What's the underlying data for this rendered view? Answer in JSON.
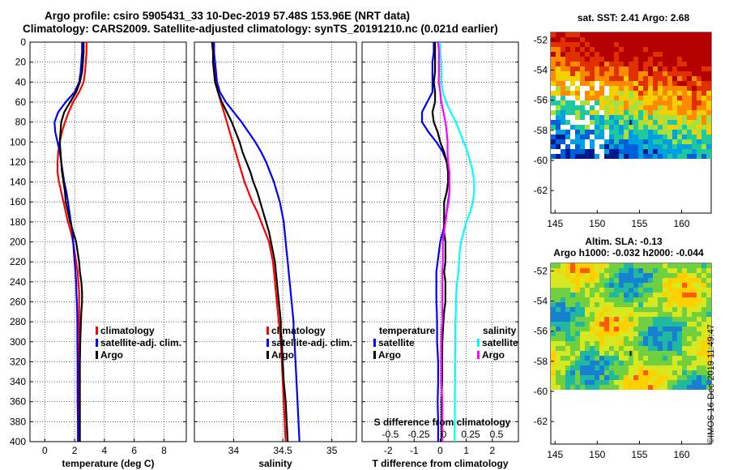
{
  "titles": {
    "line1": "Argo profile: csiro 5905431_33 10-Dec-2019 57.48S 153.96E (NRT data)",
    "line2": "Climatology: CARS2009. Satellite-adjusted climatology: synTS_20191210.nc (0.021d earlier)"
  },
  "credit": "©IMOS 16-Dec-2019 11:49:47",
  "depth_ticks": [
    "0",
    "20",
    "40",
    "60",
    "80",
    "100",
    "120",
    "140",
    "160",
    "180",
    "200",
    "220",
    "240",
    "260",
    "280",
    "300",
    "320",
    "340",
    "360",
    "380",
    "400"
  ],
  "chart_data": [
    {
      "type": "line",
      "name": "temperature",
      "xlabel": "temperature (deg C)",
      "xlim": [
        -1,
        9.5
      ],
      "ylim": [
        400,
        0
      ],
      "xticks": [
        "0",
        "2",
        "4",
        "6",
        "8"
      ],
      "xtick_values": [
        0,
        2,
        4,
        6,
        8
      ],
      "grid": true,
      "depth": [
        0,
        10,
        20,
        30,
        40,
        50,
        60,
        70,
        80,
        90,
        100,
        110,
        120,
        130,
        140,
        150,
        160,
        170,
        180,
        190,
        200,
        210,
        220,
        230,
        240,
        250,
        260,
        270,
        280,
        290,
        300,
        320,
        340,
        360,
        380,
        400
      ],
      "series": [
        {
          "name": "climatology",
          "color": "#ff0000",
          "values": [
            2.8,
            2.8,
            2.75,
            2.7,
            2.6,
            2.3,
            1.9,
            1.6,
            1.35,
            1.15,
            1.0,
            0.9,
            0.85,
            0.85,
            0.95,
            1.1,
            1.25,
            1.4,
            1.55,
            1.75,
            1.9,
            2.0,
            2.1,
            2.2,
            2.25,
            2.3,
            2.3,
            2.3,
            2.3,
            2.3,
            2.3,
            2.28,
            2.28,
            2.3,
            2.3,
            2.3
          ]
        },
        {
          "name": "satellite-adj. clim.",
          "color": "#0000ff",
          "values": [
            2.5,
            2.5,
            2.45,
            2.4,
            2.3,
            2.0,
            1.4,
            0.9,
            0.65,
            0.7,
            0.85,
            1.0,
            1.1,
            1.2,
            1.3,
            1.45,
            1.55,
            1.65,
            1.75,
            1.85,
            1.9,
            1.95,
            2.0,
            2.05,
            2.1,
            2.12,
            2.15,
            2.17,
            2.18,
            2.18,
            2.18,
            2.2,
            2.2,
            2.2,
            2.22,
            2.22
          ]
        },
        {
          "name": "Argo",
          "color": "#000000",
          "values": [
            2.6,
            2.6,
            2.55,
            2.5,
            2.35,
            2.1,
            1.7,
            1.3,
            1.1,
            1.05,
            1.0,
            1.05,
            1.1,
            1.15,
            1.25,
            1.35,
            1.4,
            1.55,
            1.7,
            1.9,
            2.1,
            2.2,
            2.3,
            2.35,
            2.45,
            2.5,
            2.5,
            2.45,
            2.42,
            2.4,
            2.38,
            2.35,
            2.35,
            2.35,
            2.35,
            2.35
          ]
        }
      ],
      "legend": {
        "position": "right-middle",
        "entries": [
          "climatology",
          "satellite-adj. clim.",
          "Argo"
        ]
      }
    },
    {
      "type": "line",
      "name": "salinity",
      "xlabel": "salinity",
      "xlim": [
        33.6,
        35.25
      ],
      "ylim": [
        400,
        0
      ],
      "xticks": [
        "34",
        "34.5",
        "35"
      ],
      "xtick_values": [
        34,
        34.5,
        35
      ],
      "grid": true,
      "depth": [
        0,
        10,
        20,
        30,
        40,
        50,
        60,
        70,
        80,
        90,
        100,
        110,
        120,
        130,
        140,
        150,
        160,
        170,
        180,
        190,
        200,
        210,
        220,
        230,
        240,
        250,
        260,
        270,
        280,
        290,
        300,
        320,
        340,
        360,
        380,
        400
      ],
      "series": [
        {
          "name": "climatology",
          "color": "#ff0000",
          "values": [
            33.8,
            33.8,
            33.8,
            33.81,
            33.82,
            33.84,
            33.87,
            33.9,
            33.93,
            33.96,
            33.99,
            34.02,
            34.05,
            34.08,
            34.11,
            34.15,
            34.19,
            34.24,
            34.28,
            34.32,
            34.36,
            34.38,
            34.4,
            34.41,
            34.42,
            34.43,
            34.44,
            34.45,
            34.46,
            34.47,
            34.48,
            34.49,
            34.5,
            34.51,
            34.52,
            34.53
          ]
        },
        {
          "name": "satellite-adj. clim.",
          "color": "#0000ff",
          "values": [
            33.8,
            33.8,
            33.81,
            33.82,
            33.83,
            33.86,
            33.92,
            34.0,
            34.08,
            34.15,
            34.22,
            34.28,
            34.33,
            34.37,
            34.41,
            34.44,
            34.47,
            34.49,
            34.51,
            34.52,
            34.53,
            34.54,
            34.55,
            34.56,
            34.57,
            34.58,
            34.59,
            34.6,
            34.61,
            34.61,
            34.62,
            34.63,
            34.64,
            34.65,
            34.66,
            34.67
          ]
        },
        {
          "name": "Argo",
          "color": "#000000",
          "values": [
            33.78,
            33.79,
            33.79,
            33.8,
            33.81,
            33.84,
            33.88,
            33.93,
            33.98,
            34.02,
            34.06,
            34.09,
            34.13,
            34.17,
            34.2,
            34.24,
            34.27,
            34.3,
            34.33,
            34.36,
            34.38,
            34.4,
            34.42,
            34.43,
            34.44,
            34.45,
            34.46,
            34.47,
            34.48,
            34.48,
            34.49,
            34.5,
            34.51,
            34.53,
            34.54,
            34.55
          ]
        }
      ],
      "legend": {
        "position": "right-middle",
        "entries": [
          "climatology",
          "satellite-adj. clim.",
          "Argo"
        ]
      }
    },
    {
      "type": "line",
      "name": "differences",
      "xlabel": "T difference from climatology",
      "xlim": [
        -3,
        3
      ],
      "ylim": [
        400,
        0
      ],
      "xticks": [
        "-2",
        "-1",
        "0",
        "1",
        "2"
      ],
      "xtick_values": [
        -2,
        -1,
        0,
        1,
        2
      ],
      "secondary_axis": {
        "label": "S difference from climatology",
        "ticks": [
          "-0.5",
          "-0.25",
          "0",
          "0.25",
          "0.5"
        ]
      },
      "grid": true,
      "depth": [
        0,
        10,
        20,
        30,
        40,
        50,
        60,
        70,
        80,
        90,
        100,
        110,
        120,
        130,
        140,
        150,
        160,
        170,
        180,
        190,
        200,
        210,
        220,
        230,
        240,
        250,
        260,
        270,
        280,
        290,
        300,
        320,
        340,
        360,
        380,
        400
      ],
      "series": [
        {
          "name": "temperature satellite",
          "color": "#0000ff",
          "values": [
            -0.25,
            -0.25,
            -0.3,
            -0.3,
            -0.3,
            -0.3,
            -0.5,
            -0.7,
            -0.7,
            -0.45,
            -0.15,
            0.1,
            0.25,
            0.35,
            0.35,
            0.35,
            0.3,
            0.25,
            0.2,
            0.1,
            0.0,
            -0.05,
            -0.1,
            -0.15,
            -0.15,
            -0.15,
            -0.15,
            -0.13,
            -0.12,
            -0.12,
            -0.12,
            -0.08,
            -0.08,
            -0.1,
            -0.08,
            -0.08
          ]
        },
        {
          "name": "temperature Argo",
          "color": "#000000",
          "values": [
            -0.2,
            -0.2,
            -0.2,
            -0.2,
            -0.25,
            -0.2,
            -0.2,
            -0.3,
            -0.25,
            -0.1,
            0.0,
            0.15,
            0.25,
            0.3,
            0.3,
            0.25,
            0.15,
            0.15,
            0.15,
            0.15,
            0.2,
            0.2,
            0.2,
            0.15,
            0.2,
            0.2,
            0.2,
            0.15,
            0.12,
            0.1,
            0.08,
            0.07,
            0.07,
            0.05,
            0.05,
            0.05
          ]
        },
        {
          "name": "salinity satellite",
          "color": "#00ffff",
          "values": [
            0.0,
            0.0,
            0.03,
            0.06,
            0.04,
            0.1,
            0.22,
            0.4,
            0.6,
            0.75,
            0.9,
            1.05,
            1.15,
            1.25,
            1.3,
            1.3,
            1.25,
            1.15,
            1.0,
            0.9,
            0.8,
            0.75,
            0.72,
            0.7,
            0.65,
            0.62,
            0.6,
            0.6,
            0.58,
            0.58,
            0.58,
            0.57,
            0.57,
            0.56,
            0.56,
            0.55
          ]
        },
        {
          "name": "salinity Argo",
          "color": "#ff00ff",
          "values": [
            -0.08,
            -0.05,
            -0.05,
            -0.05,
            -0.06,
            0.0,
            0.04,
            0.12,
            0.2,
            0.25,
            0.28,
            0.28,
            0.3,
            0.35,
            0.35,
            0.35,
            0.32,
            0.25,
            0.2,
            0.15,
            0.1,
            0.1,
            0.1,
            0.08,
            0.08,
            0.08,
            0.08,
            0.08,
            0.08,
            0.05,
            0.04,
            0.04,
            0.04,
            0.08,
            0.08,
            0.08
          ]
        }
      ],
      "legend": {
        "temperature_title": "temperature",
        "salinity_title": "salinity",
        "temperature_entries": [
          "satellite",
          "Argo"
        ],
        "salinity_entries": [
          "satellite",
          "Argo"
        ]
      }
    },
    {
      "type": "heatmap",
      "name": "sst_map",
      "title": "sat. SST: 2.41 Argo: 2.68",
      "xticks": [
        "145",
        "150",
        "155",
        "160"
      ],
      "yticks": [
        "-52",
        "-54",
        "-56",
        "-58",
        "-60",
        "-62"
      ],
      "xlim": [
        144.5,
        163.5
      ],
      "ylim": [
        -63.5,
        -51.5
      ]
    },
    {
      "type": "heatmap",
      "name": "sla_map",
      "title_line1": "Altim. SLA: -0.13",
      "title_line2": "Argo h1000: -0.032 h2000: -0.044",
      "xticks": [
        "145",
        "150",
        "155",
        "160"
      ],
      "yticks": [
        "-52",
        "-54",
        "-56",
        "-58",
        "-60",
        "-62"
      ],
      "xlim": [
        144.5,
        163.5
      ],
      "ylim": [
        -63.5,
        -51.5
      ]
    }
  ]
}
